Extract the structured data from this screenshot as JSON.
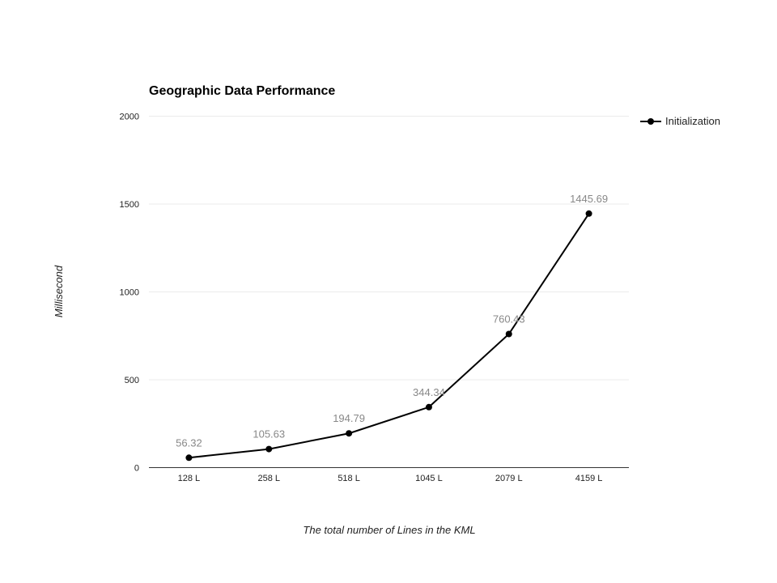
{
  "chart_data": {
    "type": "line",
    "title": "Geographic Data Performance",
    "xlabel": "The total number of Lines in the KML",
    "ylabel": "Millisecond",
    "categories": [
      "128 L",
      "258 L",
      "518 L",
      "1045 L",
      "2079 L",
      "4159 L"
    ],
    "series": [
      {
        "name": "Initialization",
        "values": [
          56.32,
          105.63,
          194.79,
          344.34,
          760.43,
          1445.69
        ],
        "labels": [
          "56.32",
          "105.63",
          "194.79",
          "344.34",
          "760.43",
          "1445.69"
        ],
        "color": "#000000"
      }
    ],
    "ylim": [
      0,
      2000
    ],
    "yticks": [
      "0",
      "500",
      "1000",
      "1500",
      "2000"
    ],
    "grid": true,
    "legend": "right"
  }
}
